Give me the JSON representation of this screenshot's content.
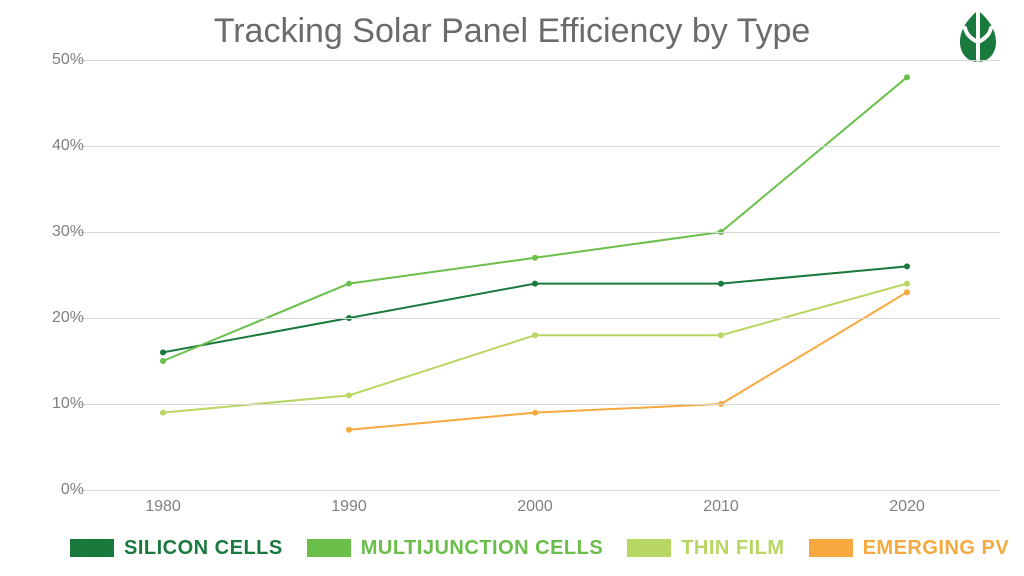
{
  "chart": {
    "type": "line",
    "title": "Tracking Solar Panel Efficiency by Type",
    "title_color": "#6b6b6b",
    "title_fontsize": 34,
    "title_fontweight": 400,
    "background_color": "#ffffff",
    "grid_color": "#d9d9d9",
    "axis_label_color": "#808080",
    "axis_label_fontsize": 16,
    "x": {
      "years": [
        1980,
        1990,
        2000,
        2010,
        2020
      ],
      "min": 1975,
      "max": 2025
    },
    "y": {
      "min": 0,
      "max": 50,
      "tick_step": 10,
      "ticks": [
        0,
        10,
        20,
        30,
        40,
        50
      ],
      "suffix": "%"
    },
    "series": [
      {
        "id": "silicon",
        "label": "SILICON CELLS",
        "color": "#1a7a3e",
        "line_width": 2,
        "marker_size": 3,
        "x": [
          1980,
          1990,
          2000,
          2010,
          2020
        ],
        "y": [
          16,
          20,
          24,
          24,
          26
        ]
      },
      {
        "id": "multijunction",
        "label": "MULTIJUNCTION CELLS",
        "color": "#6abf4b",
        "line_width": 2,
        "marker_size": 3,
        "x": [
          1980,
          1990,
          2000,
          2010,
          2020
        ],
        "y": [
          15,
          24,
          27,
          30,
          48
        ]
      },
      {
        "id": "thinfilm",
        "label": "THIN FILM",
        "color": "#b8d662",
        "line_width": 2,
        "marker_size": 3,
        "x": [
          1980,
          1990,
          2000,
          2010,
          2020
        ],
        "y": [
          9,
          11,
          18,
          18,
          24
        ]
      },
      {
        "id": "emerging",
        "label": "EMERGING PV",
        "color": "#f5a93e",
        "line_width": 2,
        "marker_size": 3,
        "x": [
          1990,
          2000,
          2010,
          2020
        ],
        "y": [
          7,
          9,
          10,
          23
        ]
      }
    ],
    "legend": {
      "fontsize": 20,
      "fontweight": 700
    },
    "logo_color": "#1a7a3e"
  }
}
